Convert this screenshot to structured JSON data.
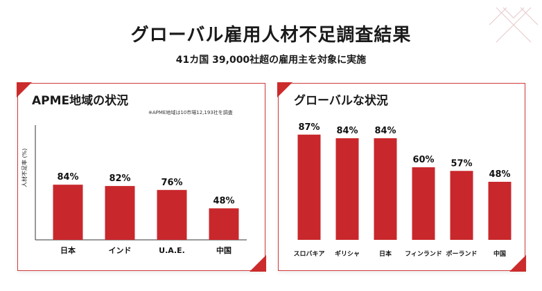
{
  "header": {
    "title": "グローバル雇用人材不足調査結果",
    "subtitle": "41カ国 39,000社超の雇用主を対象に実施"
  },
  "colors": {
    "accent": "#cc2b2b",
    "bar": "#c8282c"
  },
  "chart_data": [
    {
      "type": "bar",
      "title": "APME地域の状況",
      "note": "※APME地域は10市場12,193社を調査",
      "ylabel": "人材不足率 (%)",
      "categories": [
        "日本",
        "インド",
        "U.A.E.",
        "中国"
      ],
      "values": [
        84,
        82,
        76,
        48
      ],
      "value_labels": [
        "84%",
        "82%",
        "76%",
        "48%"
      ],
      "ylim": [
        0,
        100
      ],
      "grid": false,
      "legend": "none"
    },
    {
      "type": "bar",
      "title": "グローバルな状況",
      "categories": [
        "スロバキア",
        "ギリシャ",
        "日本",
        "フィンランド",
        "ポーランド",
        "中国"
      ],
      "values": [
        87,
        84,
        84,
        60,
        57,
        48
      ],
      "value_labels": [
        "87%",
        "84%",
        "84%",
        "60%",
        "57%",
        "48%"
      ],
      "ylim": [
        0,
        100
      ],
      "grid": false,
      "legend": "none"
    }
  ]
}
